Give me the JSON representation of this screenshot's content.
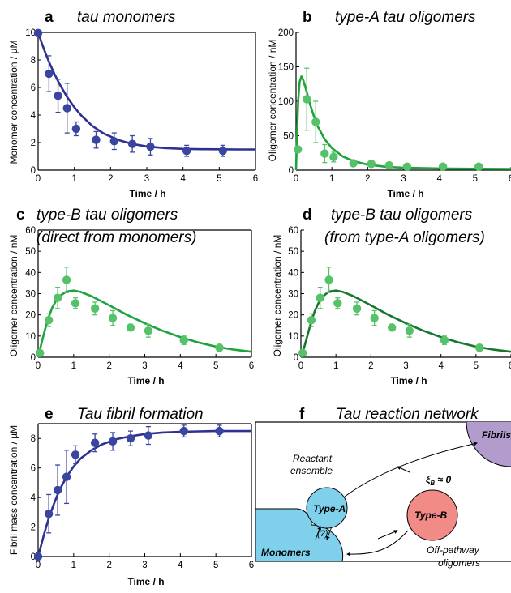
{
  "colors": {
    "navy": "#2e3192",
    "marker_navy": "#3a45a0",
    "green": "#1fa33c",
    "dark_green": "#17772e",
    "marker_green": "#55c26a",
    "cyan": "#7fd0ea",
    "red": "#f28a86",
    "purple": "#b19ccd"
  },
  "chart_data": [
    {
      "type": "scatter",
      "panel": "a",
      "title": "tau monomers",
      "xlabel": "Time / h",
      "ylabel": "Monomer concentration / µM",
      "xlim": [
        0,
        6
      ],
      "ylim": [
        0,
        10
      ],
      "xticks": [
        0,
        1,
        2,
        3,
        4,
        5,
        6
      ],
      "yticks": [
        0,
        2,
        4,
        6,
        8,
        10
      ],
      "points": [
        {
          "x": 0.0,
          "y": 9.95,
          "err": 0.05
        },
        {
          "x": 0.3,
          "y": 7.0,
          "err": 1.3
        },
        {
          "x": 0.55,
          "y": 5.4,
          "err": 1.2
        },
        {
          "x": 0.8,
          "y": 4.5,
          "err": 1.8
        },
        {
          "x": 1.05,
          "y": 3.0,
          "err": 0.5
        },
        {
          "x": 1.6,
          "y": 2.2,
          "err": 0.6
        },
        {
          "x": 2.1,
          "y": 2.1,
          "err": 0.6
        },
        {
          "x": 2.6,
          "y": 1.9,
          "err": 0.6
        },
        {
          "x": 3.1,
          "y": 1.7,
          "err": 0.6
        },
        {
          "x": 4.1,
          "y": 1.4,
          "err": 0.4
        },
        {
          "x": 5.1,
          "y": 1.4,
          "err": 0.4
        }
      ],
      "fit": {
        "x": [
          0,
          0.1,
          0.2,
          0.3,
          0.45,
          0.6,
          0.8,
          1.0,
          1.2,
          1.5,
          1.8,
          2.2,
          2.6,
          3.0,
          3.5,
          4.0,
          4.5,
          5.0,
          5.5,
          6.0
        ],
        "y": [
          10.0,
          9.22,
          8.51,
          7.86,
          6.98,
          6.21,
          5.31,
          4.56,
          3.94,
          3.2,
          2.67,
          2.2,
          1.9,
          1.72,
          1.6,
          1.54,
          1.52,
          1.51,
          1.5,
          1.5
        ]
      }
    },
    {
      "type": "scatter",
      "panel": "b",
      "title": "type-A tau oligomers",
      "xlabel": "Time / h",
      "ylabel": "Oligomer concentration / nM",
      "xlim": [
        0,
        6
      ],
      "ylim": [
        0,
        200
      ],
      "xticks": [
        0,
        1,
        2,
        3,
        4,
        5,
        6
      ],
      "yticks": [
        0,
        50,
        100,
        150,
        200
      ],
      "points": [
        {
          "x": 0.05,
          "y": 30,
          "err": 0
        },
        {
          "x": 0.3,
          "y": 103,
          "err": 45
        },
        {
          "x": 0.55,
          "y": 70,
          "err": 30
        },
        {
          "x": 0.8,
          "y": 24,
          "err": 13
        },
        {
          "x": 1.05,
          "y": 19,
          "err": 7
        },
        {
          "x": 1.6,
          "y": 10,
          "err": 3
        },
        {
          "x": 2.1,
          "y": 9,
          "err": 3
        },
        {
          "x": 2.6,
          "y": 7,
          "err": 3
        },
        {
          "x": 3.1,
          "y": 5,
          "err": 2
        },
        {
          "x": 4.1,
          "y": 5,
          "err": 2
        },
        {
          "x": 5.1,
          "y": 5,
          "err": 2
        }
      ],
      "fit": {
        "x": [
          0,
          0.03,
          0.06,
          0.1,
          0.15,
          0.2,
          0.3,
          0.4,
          0.5,
          0.6,
          0.8,
          1.0,
          1.3,
          1.6,
          2.0,
          2.5,
          3.0,
          4.0,
          5.0,
          6.0
        ],
        "y": [
          0,
          55,
          100,
          128,
          136,
          131,
          113,
          94,
          78,
          64,
          45,
          32,
          20,
          13,
          8,
          5,
          3.5,
          2.5,
          2,
          1.8
        ]
      }
    },
    {
      "type": "scatter",
      "panel": "c",
      "title": "type-B tau oligomers",
      "subtitle": "(direct from monomers)",
      "xlabel": "Time / h",
      "ylabel": "Oligomer concentration / nM",
      "xlim": [
        0,
        6
      ],
      "ylim": [
        0,
        60
      ],
      "xticks": [
        0,
        1,
        2,
        3,
        4,
        5,
        6
      ],
      "yticks": [
        0,
        10,
        20,
        30,
        40,
        50,
        60
      ],
      "points": [
        {
          "x": 0.05,
          "y": 2,
          "err": 0
        },
        {
          "x": 0.3,
          "y": 17.5,
          "err": 3
        },
        {
          "x": 0.55,
          "y": 28,
          "err": 5
        },
        {
          "x": 0.8,
          "y": 36.5,
          "err": 6
        },
        {
          "x": 1.05,
          "y": 25.5,
          "err": 2.5
        },
        {
          "x": 1.6,
          "y": 23,
          "err": 3
        },
        {
          "x": 2.1,
          "y": 18.5,
          "err": 3.5
        },
        {
          "x": 2.6,
          "y": 14,
          "err": 1.5
        },
        {
          "x": 3.1,
          "y": 12.5,
          "err": 3
        },
        {
          "x": 4.1,
          "y": 8,
          "err": 2
        },
        {
          "x": 5.1,
          "y": 4.5,
          "err": 1.5
        }
      ],
      "fit": {
        "x": [
          0,
          0.1,
          0.2,
          0.3,
          0.4,
          0.5,
          0.6,
          0.8,
          1.0,
          1.2,
          1.5,
          2.0,
          2.5,
          3.0,
          3.5,
          4.0,
          4.5,
          5.0,
          5.5,
          6.0
        ],
        "y": [
          0,
          7,
          13.5,
          19,
          23.5,
          26.5,
          28.8,
          31,
          31.5,
          30.8,
          28.8,
          24.5,
          20,
          16,
          12.5,
          9.5,
          7,
          5,
          3.6,
          2.6
        ]
      }
    },
    {
      "type": "scatter",
      "panel": "d",
      "title": "type-B tau oligomers",
      "subtitle": "(from type-A oligomers)",
      "xlabel": "Time / h",
      "ylabel": "Oligomer concentration / nM",
      "xlim": [
        0,
        6
      ],
      "ylim": [
        0,
        60
      ],
      "xticks": [
        0,
        1,
        2,
        3,
        4,
        5,
        6
      ],
      "yticks": [
        0,
        10,
        20,
        30,
        40,
        50,
        60
      ],
      "points": [
        {
          "x": 0.05,
          "y": 2,
          "err": 0
        },
        {
          "x": 0.3,
          "y": 17.5,
          "err": 3
        },
        {
          "x": 0.55,
          "y": 28,
          "err": 5
        },
        {
          "x": 0.8,
          "y": 36.5,
          "err": 6
        },
        {
          "x": 1.05,
          "y": 25.5,
          "err": 2.5
        },
        {
          "x": 1.6,
          "y": 23,
          "err": 3
        },
        {
          "x": 2.1,
          "y": 18.5,
          "err": 3.5
        },
        {
          "x": 2.6,
          "y": 14,
          "err": 1.5
        },
        {
          "x": 3.1,
          "y": 12.5,
          "err": 3
        },
        {
          "x": 4.1,
          "y": 8,
          "err": 2
        },
        {
          "x": 5.1,
          "y": 4.5,
          "err": 1.5
        }
      ],
      "fit": {
        "x": [
          0,
          0.1,
          0.2,
          0.3,
          0.4,
          0.5,
          0.6,
          0.8,
          1.0,
          1.2,
          1.5,
          2.0,
          2.5,
          3.0,
          3.5,
          4.0,
          4.5,
          5.0,
          5.5,
          6.0
        ],
        "y": [
          0,
          5,
          11,
          17,
          22,
          25.5,
          28.3,
          31,
          31.5,
          30.8,
          28.8,
          24.5,
          20,
          16,
          12.5,
          9.5,
          7,
          5,
          3.6,
          2.6
        ]
      }
    },
    {
      "type": "scatter",
      "panel": "e",
      "title": "Tau fibril formation",
      "xlabel": "Time / h",
      "ylabel": "Fibril mass concentration / µM",
      "xlim": [
        0,
        6
      ],
      "ylim": [
        0,
        9
      ],
      "xticks": [
        0,
        1,
        2,
        3,
        4,
        5,
        6
      ],
      "yticks": [
        0,
        2,
        4,
        6,
        8
      ],
      "points": [
        {
          "x": 0.0,
          "y": 0.0,
          "err": 0
        },
        {
          "x": 0.3,
          "y": 2.9,
          "err": 1.3
        },
        {
          "x": 0.55,
          "y": 4.5,
          "err": 1.7
        },
        {
          "x": 0.8,
          "y": 5.4,
          "err": 1.8
        },
        {
          "x": 1.05,
          "y": 6.9,
          "err": 0.6
        },
        {
          "x": 1.6,
          "y": 7.7,
          "err": 0.6
        },
        {
          "x": 2.1,
          "y": 7.8,
          "err": 0.6
        },
        {
          "x": 2.6,
          "y": 8.0,
          "err": 0.5
        },
        {
          "x": 3.1,
          "y": 8.2,
          "err": 0.6
        },
        {
          "x": 4.1,
          "y": 8.5,
          "err": 0.4
        },
        {
          "x": 5.1,
          "y": 8.5,
          "err": 0.4
        }
      ],
      "fit": {
        "x": [
          0,
          0.1,
          0.2,
          0.3,
          0.45,
          0.6,
          0.8,
          1.0,
          1.2,
          1.5,
          1.8,
          2.2,
          2.6,
          3.0,
          3.5,
          4.0,
          4.5,
          5.0,
          5.5,
          6.0
        ],
        "y": [
          0,
          0.9,
          1.8,
          2.6,
          3.6,
          4.5,
          5.4,
          6.1,
          6.65,
          7.2,
          7.6,
          7.95,
          8.15,
          8.3,
          8.4,
          8.45,
          8.48,
          8.5,
          8.5,
          8.5
        ]
      }
    }
  ],
  "network": {
    "panel": "f",
    "title": "Tau reaction network",
    "nodes": {
      "fibrils": "Fibrils",
      "type_a": "Type-A",
      "type_b": "Type-B",
      "monomers": "Monomers",
      "question": "(?)"
    },
    "annotations": {
      "reactant_1": "Reactant",
      "reactant_2": "ensemble",
      "xi": "ξ",
      "xi_sub": "B",
      "xi_rest": " ≈ 0",
      "offpath_1": "Off-pathway",
      "offpath_2": "oligomers"
    }
  }
}
